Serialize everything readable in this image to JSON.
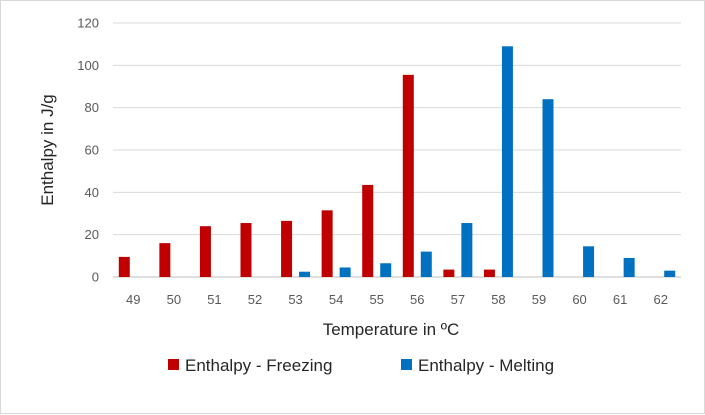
{
  "chart_data": {
    "type": "bar",
    "title": "",
    "xlabel": "Temperature in ºC",
    "ylabel": "Enthalpy in J/g",
    "categories": [
      "49",
      "50",
      "51",
      "52",
      "53",
      "54",
      "55",
      "56",
      "57",
      "58",
      "59",
      "60",
      "61",
      "62"
    ],
    "series": [
      {
        "name": "Enthalpy - Freezing",
        "color": "#c00000",
        "values": [
          9.5,
          16,
          24,
          25.5,
          26.5,
          31.5,
          43.5,
          95.5,
          3.5,
          3.5,
          0,
          0,
          0,
          0
        ]
      },
      {
        "name": "Enthalpy - Melting",
        "color": "#0070c0",
        "values": [
          0,
          0,
          0,
          0,
          2.5,
          4.5,
          6.5,
          12,
          25.5,
          109,
          84,
          14.5,
          9,
          3
        ]
      }
    ],
    "ylim": [
      0,
      120
    ],
    "yticks": [
      0,
      20,
      40,
      60,
      80,
      100,
      120
    ],
    "grid": true,
    "legend_position": "bottom"
  }
}
